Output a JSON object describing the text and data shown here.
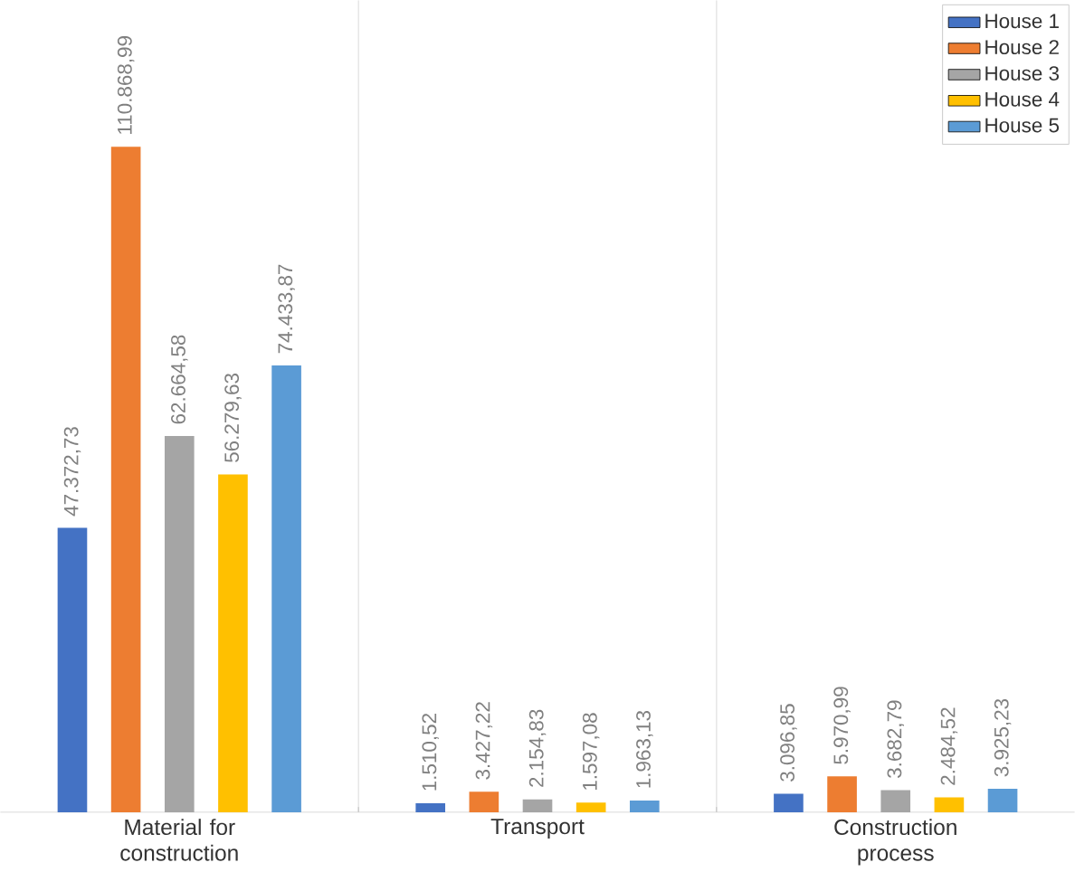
{
  "chart_data": {
    "type": "bar",
    "categories": [
      "Material for construction",
      "Transport",
      "Construction process"
    ],
    "series": [
      {
        "name": "House 1",
        "color": "#4472c4",
        "values": [
          47372.73,
          1510.52,
          3096.85
        ],
        "value_labels": [
          "47.372,73",
          "1.510,52",
          "3.096,85"
        ]
      },
      {
        "name": "House 2",
        "color": "#ed7d31",
        "values": [
          110868.99,
          3427.22,
          5970.99
        ],
        "value_labels": [
          "110.868,99",
          "3.427,22",
          "5.970,99"
        ]
      },
      {
        "name": "House 3",
        "color": "#a5a5a5",
        "values": [
          62664.58,
          2154.83,
          3682.79
        ],
        "value_labels": [
          "62.664,58",
          "2.154,83",
          "3.682,79"
        ]
      },
      {
        "name": "House 4",
        "color": "#ffc000",
        "values": [
          56279.63,
          1597.08,
          2484.52
        ],
        "value_labels": [
          "56.279,63",
          "1.597,08",
          "2.484,52"
        ]
      },
      {
        "name": "House 5",
        "color": "#5b9bd5",
        "values": [
          74433.87,
          1963.13,
          3925.23
        ],
        "value_labels": [
          "74.433,87",
          "1.963,13",
          "3.925,23"
        ]
      }
    ],
    "grid": "x",
    "legend": "top right"
  }
}
